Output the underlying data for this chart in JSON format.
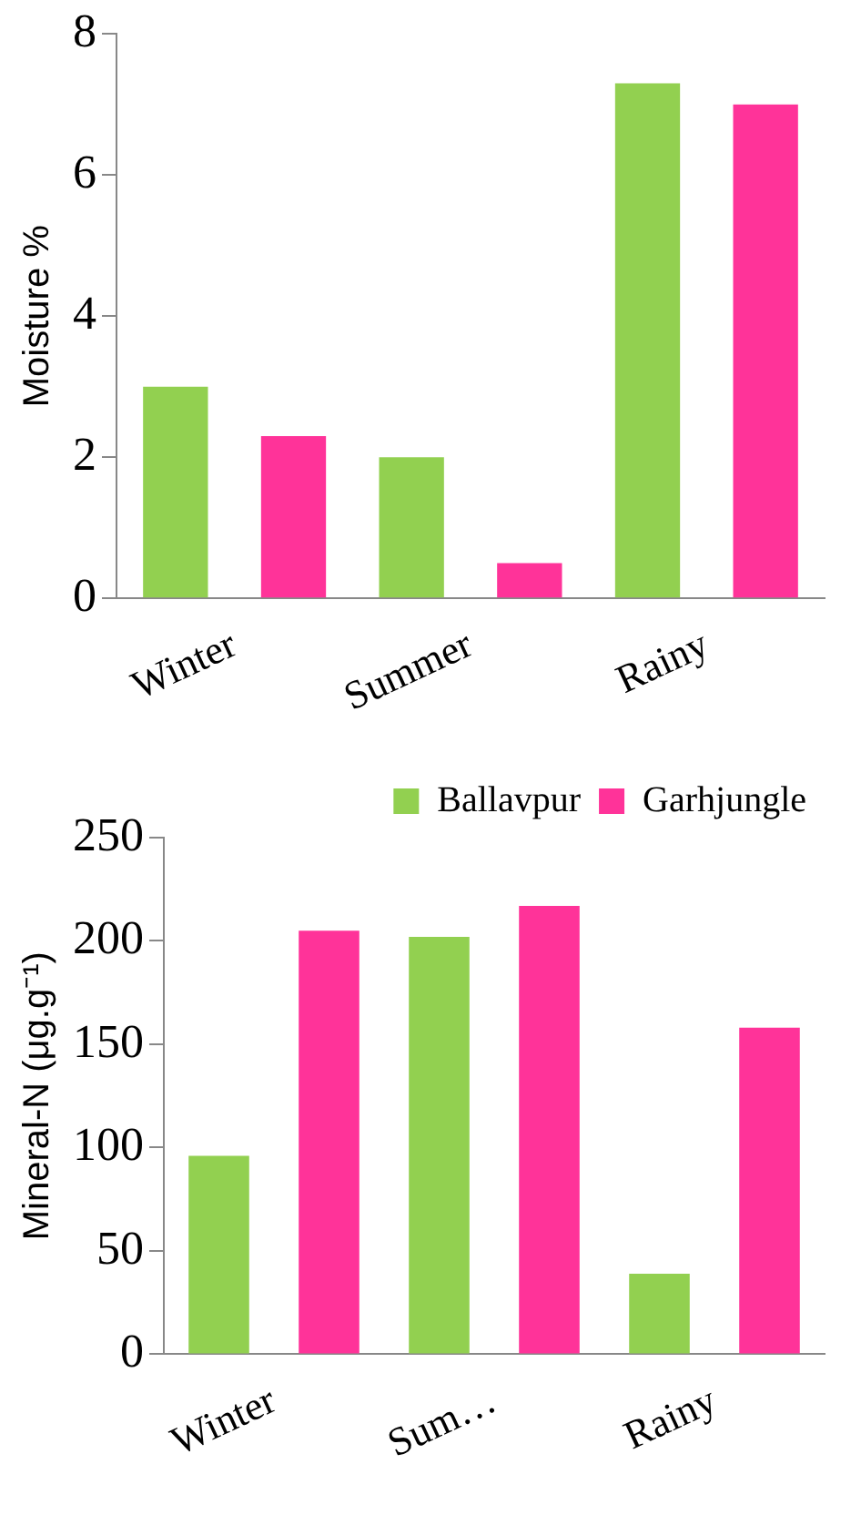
{
  "chart_data": [
    {
      "type": "bar",
      "ylabel": "Moisture %",
      "categories": [
        "Winter",
        "Summer",
        "Rainy"
      ],
      "series": [
        {
          "color": "#92d050",
          "values": [
            3.0,
            2.0,
            7.3
          ]
        },
        {
          "color": "#ff3399",
          "values": [
            2.3,
            0.5,
            7.0
          ]
        }
      ],
      "ylim": [
        0,
        8
      ],
      "yticks": [
        0,
        2,
        4,
        6,
        8
      ],
      "grid": false,
      "legend": false
    },
    {
      "type": "bar",
      "ylabel": "Mineral-N (μg.g⁻¹)",
      "categories": [
        "Winter",
        "Sum…",
        "Rainy"
      ],
      "series": [
        {
          "name": "Ballavpur",
          "color": "#92d050",
          "values": [
            96,
            202,
            39
          ]
        },
        {
          "name": "Garhjungle",
          "color": "#ff3399",
          "values": [
            205,
            217,
            158
          ]
        }
      ],
      "ylim": [
        0,
        250
      ],
      "yticks": [
        0,
        50,
        100,
        150,
        200,
        250
      ],
      "grid": false,
      "legend": "top right"
    }
  ]
}
